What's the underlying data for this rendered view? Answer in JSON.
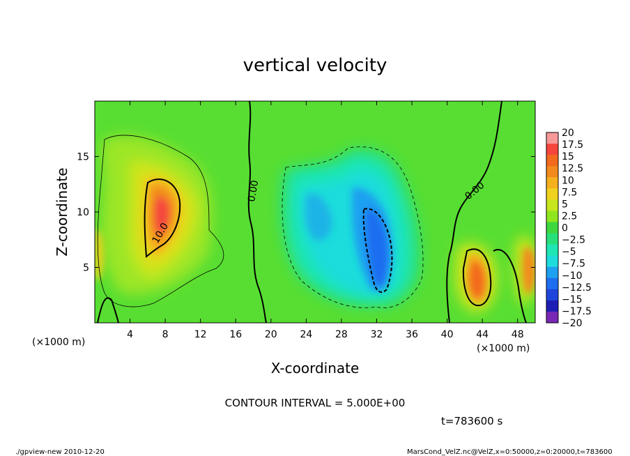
{
  "chart_data": {
    "type": "heatmap",
    "title": "vertical velocity",
    "xlabel": "X-coordinate",
    "ylabel": "Z-coordinate",
    "x_unit": "(×1000 m)",
    "y_unit": "(×1000 m)",
    "xlim": [
      0,
      50
    ],
    "ylim": [
      0,
      20
    ],
    "xticks": [
      4,
      8,
      12,
      16,
      20,
      24,
      28,
      32,
      36,
      40,
      44,
      48
    ],
    "yticks": [
      5,
      10,
      15
    ],
    "colorbar": {
      "values": [
        20,
        17.5,
        15,
        12.5,
        10,
        7.5,
        5,
        2.5,
        0,
        -2.5,
        -5,
        -7.5,
        -10,
        -12.5,
        -15,
        -17.5,
        -20
      ],
      "labels": [
        "20",
        "17.5",
        "15",
        "12.5",
        "10",
        "7.5",
        "5",
        "2.5",
        "0",
        "−2.5",
        "−5",
        "−7.5",
        "−10",
        "−12.5",
        "−15",
        "−17.5",
        "−20"
      ],
      "colors": [
        "#f79999",
        "#f5463c",
        "#f26a1e",
        "#f28a1e",
        "#f5b01e",
        "#f0d21e",
        "#c8e61e",
        "#8fe61e",
        "#3ed83e",
        "#28e07a",
        "#1ee6b4",
        "#1edcdc",
        "#1ea0f0",
        "#1e6ef0",
        "#1e46dc",
        "#1e1eb4",
        "#7828b4"
      ]
    },
    "contour_labels": [
      "10.0",
      "0.00",
      "0.00"
    ],
    "contour_interval_text": "CONTOUR INTERVAL = 5.000E+00",
    "time_text": "t=783600 s",
    "features": [
      {
        "kind": "updraft",
        "x": 8,
        "z": 10.5,
        "peak": 15
      },
      {
        "kind": "downdraft",
        "x": 32,
        "z": 6,
        "peak": -12.5
      },
      {
        "kind": "downdraft",
        "x": 25,
        "z": 10,
        "peak": -7.5
      },
      {
        "kind": "updraft",
        "x": 43.5,
        "z": 4,
        "peak": 12.5
      },
      {
        "kind": "updraft",
        "x": 49.5,
        "z": 5,
        "peak": 12.5
      }
    ]
  },
  "footer": {
    "left": "./gpview-new 2010-12-20",
    "right": "MarsCond_VelZ.nc@VelZ,x=0:50000,z=0:20000,t=783600"
  },
  "unit_left": "(×1000 m)",
  "unit_right": "(×1000 m)"
}
